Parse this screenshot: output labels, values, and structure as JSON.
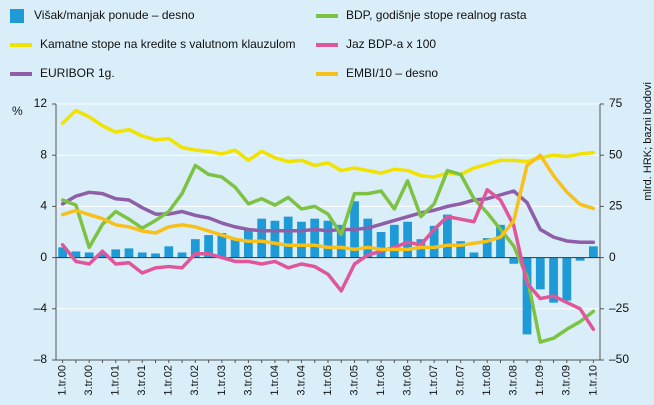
{
  "chart_data": {
    "type": "bar",
    "y_label": "%",
    "y2_label": "mlrd. HRK; bazni bodovi",
    "categories": [
      "1.tr.00",
      null,
      "3.tr.00",
      null,
      "1.tr.01",
      null,
      "3.tr.01",
      null,
      "1.tr.02",
      null,
      "3.tr.02",
      null,
      "1.tr.03",
      null,
      "3.tr.03",
      null,
      "1.tr.04",
      null,
      "3.tr.04",
      null,
      "1.tr.05",
      null,
      "3.tr.05",
      null,
      "1.tr.06",
      null,
      "3.tr.06",
      null,
      "1.tr.07",
      null,
      "3.tr.07",
      null,
      "1.tr.08",
      null,
      "3.tr.08",
      null,
      "1.tr.09",
      null,
      "3.tr.09",
      null,
      "1.tr.10"
    ],
    "ylim": [
      -8,
      12
    ],
    "yticks": [
      {
        "value": -8,
        "label": "–8"
      },
      {
        "value": -4,
        "label": "–4"
      },
      0,
      4,
      8,
      12
    ],
    "y2lim": [
      -50,
      75
    ],
    "y2ticks": [
      {
        "value": -50,
        "label": "–50"
      },
      {
        "value": -25,
        "label": "–25"
      },
      0,
      25,
      50,
      75
    ],
    "grid": true,
    "series": [
      {
        "name": "Višak/manjak ponude – desno",
        "type": "bar",
        "axis": "y2",
        "color": "#1e9ad6",
        "values": [
          5,
          3,
          2.5,
          2,
          4,
          4.5,
          2.5,
          2,
          5.5,
          2.5,
          9,
          11,
          12,
          9,
          14,
          19,
          18,
          20,
          17.5,
          19,
          18,
          16,
          27.5,
          19,
          12.5,
          16,
          17.5,
          9,
          15.5,
          21,
          8,
          2.5,
          9.5,
          16,
          -3,
          -37.5,
          -15.5,
          -22,
          -21,
          -1.5,
          5.5
        ]
      },
      {
        "name": "Kamatne stope na kredite s valutnom klauzulom",
        "type": "line",
        "color": "#f2e200",
        "values": [
          10.5,
          11.5,
          11.0,
          10.3,
          9.8,
          10.0,
          9.5,
          9.2,
          9.3,
          8.6,
          8.4,
          8.3,
          8.1,
          8.4,
          7.6,
          8.3,
          7.8,
          7.5,
          7.6,
          7.2,
          7.4,
          6.8,
          7.0,
          6.8,
          6.6,
          6.9,
          6.8,
          6.4,
          6.3,
          6.6,
          6.5,
          7.0,
          7.3,
          7.6,
          7.6,
          7.5,
          7.8,
          8.0,
          7.9,
          8.1,
          8.2
        ]
      },
      {
        "name": "EURIBOR 1g.",
        "type": "line",
        "color": "#8e5fa8",
        "values": [
          4.2,
          4.8,
          5.1,
          5.0,
          4.6,
          4.5,
          3.9,
          3.4,
          3.4,
          3.6,
          3.3,
          3.1,
          2.7,
          2.4,
          2.2,
          2.1,
          2.1,
          2.1,
          2.1,
          2.2,
          2.1,
          2.2,
          2.2,
          2.3,
          2.6,
          2.9,
          3.2,
          3.5,
          3.7,
          4.0,
          4.2,
          4.5,
          4.6,
          4.9,
          5.2,
          4.3,
          2.2,
          1.6,
          1.3,
          1.2,
          1.2
        ]
      },
      {
        "name": "BDP, godišnje stope realnog rasta",
        "type": "line",
        "color": "#7dc242",
        "values": [
          4.5,
          4.1,
          0.8,
          2.6,
          3.6,
          3.0,
          2.3,
          2.9,
          3.6,
          5.0,
          7.2,
          6.5,
          6.3,
          5.5,
          4.2,
          4.6,
          4.1,
          4.7,
          3.8,
          4.0,
          3.4,
          1.8,
          5.0,
          5.0,
          5.2,
          3.8,
          6.0,
          3.2,
          4.2,
          6.8,
          6.5,
          4.6,
          3.5,
          2.2,
          0.9,
          -1.5,
          -6.6,
          -6.3,
          -5.6,
          -5.0,
          -4.2
        ]
      },
      {
        "name": "Jaz BDP-a  x 100",
        "type": "line",
        "color": "#e0569b",
        "values": [
          1.0,
          -0.3,
          -0.5,
          0.5,
          -0.5,
          -0.4,
          -1.2,
          -0.8,
          -0.7,
          -0.8,
          0.3,
          0.3,
          0,
          -0.3,
          -0.3,
          -0.5,
          -0.3,
          -0.8,
          -0.5,
          -0.7,
          -1.3,
          -2.6,
          -0.5,
          0.2,
          0.5,
          0.8,
          1.2,
          1.0,
          2.2,
          3.2,
          3.0,
          2.8,
          5.3,
          4.5,
          2.5,
          -2.0,
          -3.2,
          -3.0,
          -3.5,
          -4.0,
          -5.6
        ]
      },
      {
        "name": "EMBI/10 – desno",
        "type": "line",
        "axis": "y2",
        "color": "#f7c11a",
        "values": [
          21,
          23,
          21,
          19,
          16,
          15,
          13,
          12,
          15,
          16,
          15,
          13,
          11,
          9,
          8,
          8,
          7,
          6,
          6,
          6,
          5,
          5,
          4,
          5,
          4,
          4,
          4,
          5,
          5,
          6,
          6,
          7,
          8,
          10,
          18,
          45,
          50,
          40,
          32,
          26,
          24
        ]
      }
    ]
  }
}
